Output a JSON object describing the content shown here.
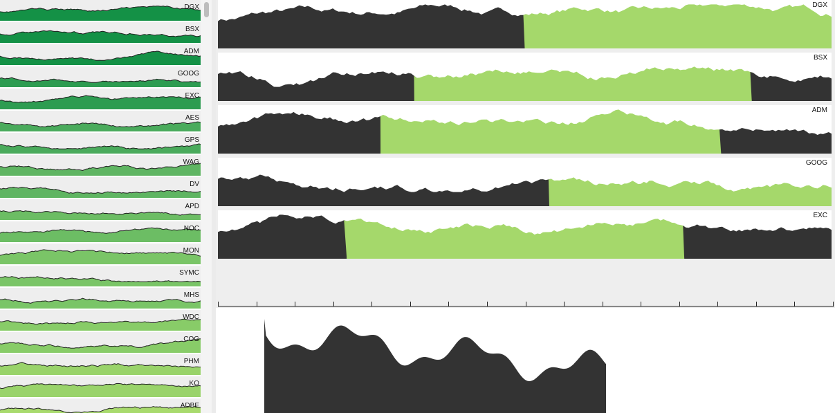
{
  "colors": {
    "dark": "#333333",
    "light_green": "#a5d86b",
    "sidebar_green": [
      "#149146",
      "#2d9c51",
      "#4aab5c",
      "#5fb562",
      "#6cbd64",
      "#7ac567",
      "#88cc68",
      "#99d36a",
      "#a8da6d"
    ],
    "panel_bg": "#eeeeee"
  },
  "sidebar": {
    "items": [
      {
        "label": "DGX"
      },
      {
        "label": "BSX"
      },
      {
        "label": "ADM"
      },
      {
        "label": "GOOG"
      },
      {
        "label": "EXC"
      },
      {
        "label": "AES"
      },
      {
        "label": "GPS"
      },
      {
        "label": "WAG"
      },
      {
        "label": "DV"
      },
      {
        "label": "APD"
      },
      {
        "label": "NOC"
      },
      {
        "label": "MON"
      },
      {
        "label": "SYMC"
      },
      {
        "label": "MHS"
      },
      {
        "label": "WDC"
      },
      {
        "label": "COG"
      },
      {
        "label": "PHM"
      },
      {
        "label": "KO"
      },
      {
        "label": "ADBE"
      }
    ]
  },
  "main": {
    "charts": [
      {
        "label": "DGX",
        "split": 0.5,
        "left": "dark",
        "right": "light_green"
      },
      {
        "label": "BSX",
        "split": 0.32,
        "left": "dark",
        "right": "light_green",
        "tail_dark_from": 0.87
      },
      {
        "label": "ADM",
        "split": 0.265,
        "left": "dark",
        "right": "light_green",
        "tail_dark_from": 0.82
      },
      {
        "label": "GOOG",
        "split": 0.54,
        "left": "dark",
        "right": "light_green"
      },
      {
        "label": "EXC",
        "split": 0.21,
        "left": "dark",
        "right": "light_green",
        "tail_dark_from": 0.76
      }
    ]
  },
  "axis": {
    "tick_count": 16
  },
  "detail": {
    "type": "area",
    "color": "dark"
  }
}
